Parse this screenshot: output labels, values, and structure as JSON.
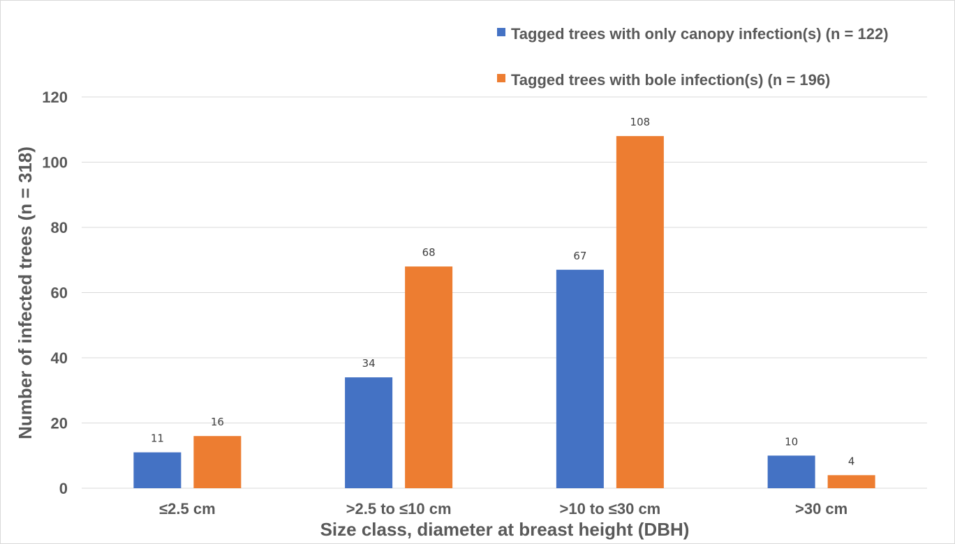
{
  "chart_data": {
    "type": "bar",
    "title": "",
    "categories": [
      "≤2.5 cm",
      ">2.5 to ≤10 cm",
      ">10 to ≤30 cm",
      ">30 cm"
    ],
    "series": [
      {
        "name": "Tagged trees with only canopy infection(s) (n = 122)",
        "color": "#4472c4",
        "values": [
          11,
          34,
          67,
          10
        ]
      },
      {
        "name": "Tagged trees with bole infection(s) (n = 196)",
        "color": "#ed7d31",
        "values": [
          16,
          68,
          108,
          4
        ]
      }
    ],
    "xlabel": "Size class, diameter at breast height (DBH)",
    "ylabel": "Number of infected trees (n = 318)",
    "ylim": [
      0,
      120
    ],
    "yticks": [
      0,
      20,
      40,
      60,
      80,
      100,
      120
    ],
    "grid": true,
    "legend_position": "top-right"
  }
}
